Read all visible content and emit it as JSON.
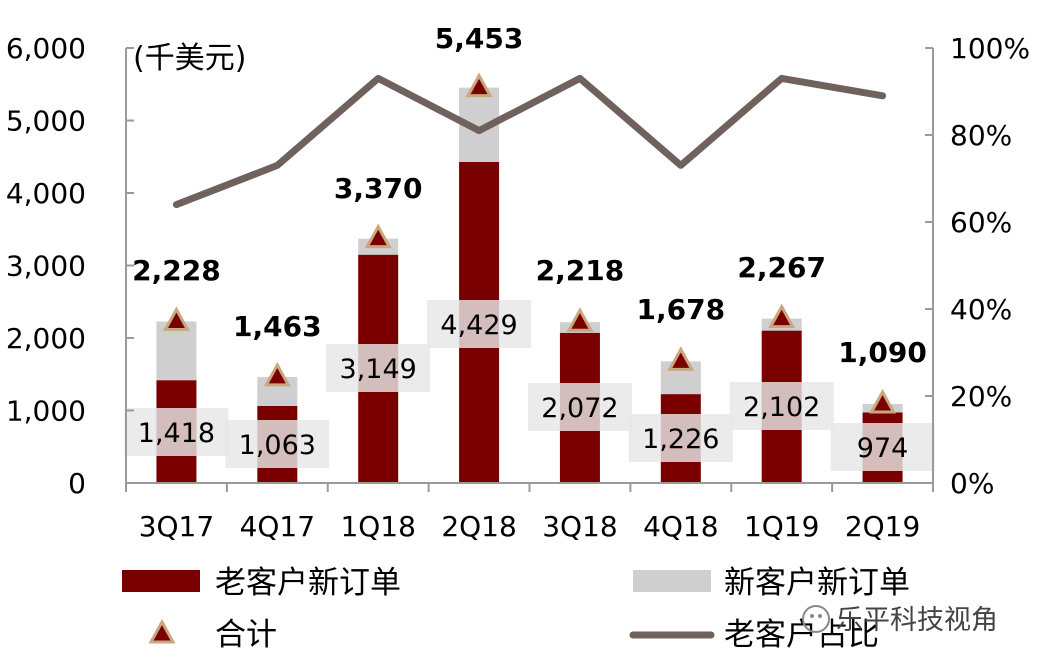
{
  "chart_data": {
    "type": "bar",
    "unit_label": "(千美元)",
    "categories": [
      "3Q17",
      "4Q17",
      "1Q18",
      "2Q18",
      "3Q18",
      "4Q18",
      "1Q19",
      "2Q19"
    ],
    "series": [
      {
        "name": "老客户新订单",
        "kind": "bar",
        "stacked": true,
        "color": "#7a0000",
        "values": [
          1418,
          1063,
          3149,
          4429,
          2072,
          1226,
          2102,
          974
        ]
      },
      {
        "name": "新客户新订单",
        "kind": "bar",
        "stacked": true,
        "color": "#cfcfcf",
        "values": [
          810,
          400,
          221,
          1024,
          146,
          452,
          165,
          116
        ]
      },
      {
        "name": "合计",
        "kind": "marker",
        "marker": "triangle",
        "color": "#7a0000",
        "values": [
          2228,
          1463,
          3370,
          5453,
          2218,
          1678,
          2267,
          1090
        ]
      },
      {
        "name": "老客户占比",
        "kind": "line",
        "axis": "right",
        "color": "#6f625c",
        "values": [
          0.64,
          0.73,
          0.93,
          0.81,
          0.93,
          0.73,
          0.93,
          0.89
        ]
      }
    ],
    "total_labels": [
      "2,228",
      "1,463",
      "3,370",
      "5,453",
      "2,218",
      "1,678",
      "2,267",
      "1,090"
    ],
    "old_labels": [
      "1,418",
      "1,063",
      "3,149",
      "4,429",
      "2,072",
      "1,226",
      "2,102",
      "974"
    ],
    "left_axis": {
      "ylim": [
        0,
        6000
      ],
      "ticks": [
        "0",
        "1,000",
        "2,000",
        "3,000",
        "4,000",
        "5,000",
        "6,000"
      ]
    },
    "right_axis": {
      "ylim": [
        0,
        1
      ],
      "ticks": [
        "0%",
        "20%",
        "40%",
        "60%",
        "80%",
        "100%"
      ]
    },
    "legend_position": "bottom",
    "grid": false
  },
  "watermark": "乐平科技视角"
}
